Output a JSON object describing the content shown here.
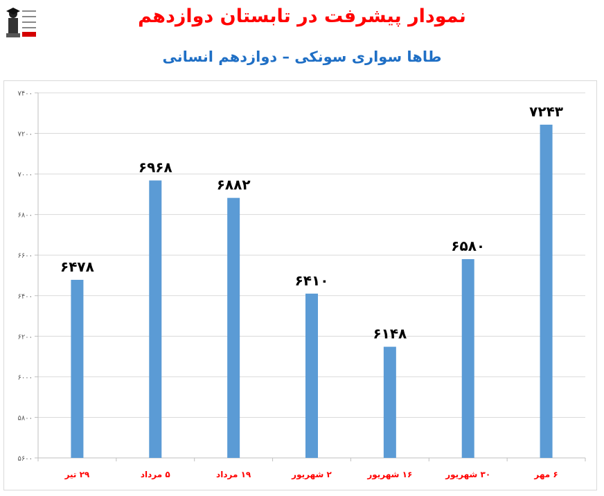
{
  "header": {
    "title": "نمودار پیشرفت در تابستان دوازدهم",
    "subtitle": "طاها سواری سونکی – دوازدهم انسانی"
  },
  "colors": {
    "title": "#ff0000",
    "subtitle": "#1f6fc5",
    "bar": "#5b9bd5",
    "category_label": "#ff0000",
    "grid": "#d9d9d9"
  },
  "chart_data": {
    "type": "bar",
    "categories": [
      "۲۹ تیر",
      "۵ مرداد",
      "۱۹ مرداد",
      "۲ شهریور",
      "۱۶ شهریور",
      "۳۰ شهریور",
      "۶ مهر"
    ],
    "value_labels": [
      "۶۴۷۸",
      "۶۹۶۸",
      "۶۸۸۲",
      "۶۴۱۰",
      "۶۱۴۸",
      "۶۵۸۰",
      "۷۲۴۳"
    ],
    "values": [
      6478,
      6968,
      6882,
      6410,
      6148,
      6580,
      7243
    ],
    "ylim": [
      5600,
      7400
    ],
    "yticks": [
      5600,
      5800,
      6000,
      6200,
      6400,
      6600,
      6800,
      7000,
      7200,
      7400
    ],
    "ytick_labels": [
      "۵۶۰۰",
      "۵۸۰۰",
      "۶۰۰۰",
      "۶۲۰۰",
      "۶۴۰۰",
      "۶۶۰۰",
      "۶۸۰۰",
      "۷۰۰۰",
      "۷۲۰۰",
      "۷۴۰۰"
    ],
    "grid": true,
    "xlabel": "",
    "ylabel": ""
  }
}
